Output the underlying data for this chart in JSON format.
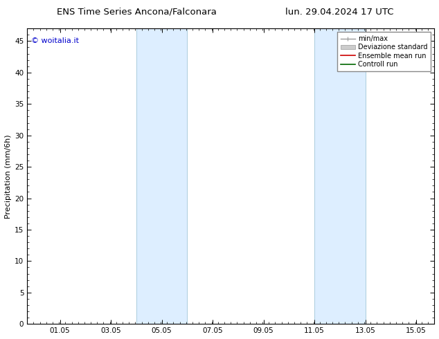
{
  "title_left": "ENS Time Series Ancona/Falconara",
  "title_right": "lun. 29.04.2024 17 UTC",
  "ylabel": "Precipitation (mm/6h)",
  "watermark": "© woitalia.it",
  "watermark_color": "#0000cc",
  "ylim": [
    0,
    47
  ],
  "yticks": [
    0,
    5,
    10,
    15,
    20,
    25,
    30,
    35,
    40,
    45
  ],
  "xtick_labels": [
    "01.05",
    "03.05",
    "05.05",
    "07.05",
    "09.05",
    "11.05",
    "13.05",
    "15.05"
  ],
  "shade_color": "#ddeeff",
  "shade_edge_color": "#aaccdd",
  "background_color": "#ffffff",
  "font_family": "DejaVu Sans",
  "title_fontsize": 9.5,
  "tick_fontsize": 7.5,
  "ylabel_fontsize": 8,
  "watermark_fontsize": 8,
  "legend_fontsize": 7
}
